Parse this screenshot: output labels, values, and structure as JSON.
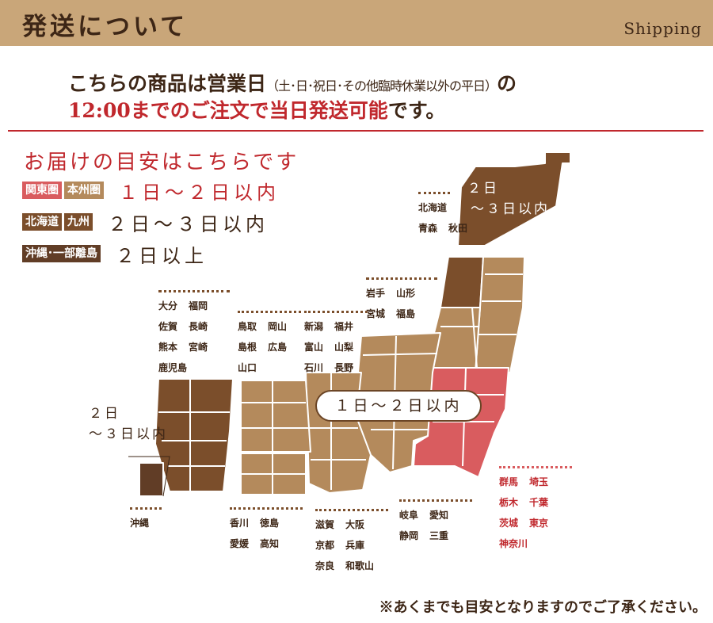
{
  "header": {
    "title": "発送について",
    "subtitle": "Shipping"
  },
  "intro": {
    "line1_main": "こちらの商品は営業日",
    "line1_paren": "（土･日･祝日･その他臨時休業以外の平日）",
    "line1_end": "の",
    "line2_red": "12:00までのご注文で当日発送可能",
    "line2_end": "です。"
  },
  "guide": {
    "title": "お届けの目安はこちらです",
    "legend": [
      {
        "badges": [
          "関東圏",
          "本州圏"
        ],
        "days": "１日～２日以内"
      },
      {
        "badges": [
          "北海道",
          "九州"
        ],
        "days": "２日～３日以内"
      },
      {
        "badges": [
          "沖縄･一部離島"
        ],
        "days": "２日以上"
      }
    ]
  },
  "map": {
    "hokkaido_days_1": "２日",
    "hokkaido_days_2": "～３日以内",
    "kyushu_days_1": "２日",
    "kyushu_days_2": "～３日以内",
    "center_label": "１日～２日以内",
    "groups": {
      "hokkaido": [
        [
          "北海道"
        ],
        [
          "青森",
          "秋田"
        ]
      ],
      "tohoku": [
        [
          "岩手",
          "山形"
        ],
        [
          "宮城",
          "福島"
        ]
      ],
      "kyushu": [
        [
          "大分",
          "福岡"
        ],
        [
          "佐賀",
          "長崎"
        ],
        [
          "熊本",
          "宮崎"
        ],
        [
          "鹿児島"
        ]
      ],
      "chugoku": [
        [
          "鳥取",
          "岡山"
        ],
        [
          "島根",
          "広島"
        ],
        [
          "山口"
        ]
      ],
      "hokuriku": [
        [
          "新潟",
          "福井"
        ],
        [
          "富山",
          "山梨"
        ],
        [
          "石川",
          "長野"
        ]
      ],
      "kanto": [
        [
          "群馬",
          "埼玉"
        ],
        [
          "栃木",
          "千葉"
        ],
        [
          "茨城",
          "東京"
        ],
        [
          "神奈川"
        ]
      ],
      "okinawa": [
        [
          "沖縄"
        ]
      ],
      "shikoku": [
        [
          "香川",
          "徳島"
        ],
        [
          "愛媛",
          "高知"
        ]
      ],
      "kinki": [
        [
          "滋賀",
          "大阪"
        ],
        [
          "京都",
          "兵庫"
        ],
        [
          "奈良",
          "和歌山"
        ]
      ],
      "tokai": [
        [
          "岐阜",
          "愛知"
        ],
        [
          "静岡",
          "三重"
        ]
      ]
    }
  },
  "colors": {
    "header_bg": "#c9a679",
    "accent_red": "#c0282d",
    "kanto_pink": "#d95c5f",
    "honshu_tan": "#b48a5c",
    "far_brown": "#7b4e2b",
    "okinawa_brown": "#613d26"
  },
  "footnote": "※あくまでも目安となりますのでご了承ください。"
}
